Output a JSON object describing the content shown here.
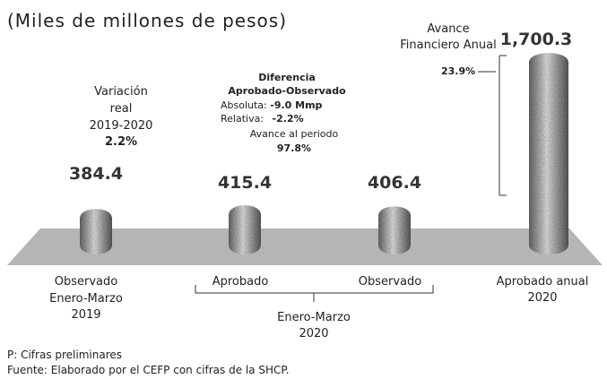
{
  "chart_data": {
    "type": "bar",
    "title": "(Miles de millones de pesos)",
    "categories": [
      [
        "Observado",
        "Enero-Marzo",
        "2019"
      ],
      [
        "Aprobado"
      ],
      [
        "Observado"
      ],
      [
        "Aprobado anual",
        "2020"
      ]
    ],
    "values": [
      384.4,
      415.4,
      406.4,
      1700.3
    ],
    "value_labels": [
      "384.4",
      "415.4",
      "406.4",
      "1,700.3"
    ],
    "group_label": [
      "Enero-Marzo",
      "2020"
    ],
    "annotations": {
      "variation": {
        "lines": [
          "Variación",
          "real",
          "2019-2020"
        ],
        "value": "2.2%"
      },
      "difference": {
        "title": [
          "Diferencia",
          "Aprobado-Observado"
        ],
        "absolute_label": "Absoluta:",
        "absolute_value": "-9.0 Mmp",
        "relative_label": "Relativa:",
        "relative_value": "-2.2%",
        "progress_label": "Avance al periodo",
        "progress_value": "97.8%"
      },
      "annual": {
        "lines": [
          "Avance",
          "Financiero Anual"
        ],
        "value": "23.9%"
      }
    },
    "notes": [
      "P: Cifras preliminares",
      "Fuente: Elaborado por el CEFP con cifras de la SHCP."
    ]
  }
}
